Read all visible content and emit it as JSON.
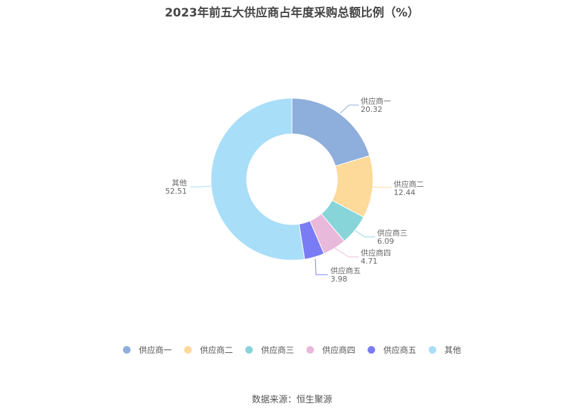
{
  "title": "2023年前五大供应商占年度采购总额比例（%）",
  "source": "数据来源：恒生聚源",
  "chart_data": {
    "type": "pie",
    "subtype": "donut",
    "title": "2023年前五大供应商占年度采购总额比例（%）",
    "categories": [
      "供应商一",
      "供应商二",
      "供应商三",
      "供应商四",
      "供应商五",
      "其他"
    ],
    "values": [
      20.32,
      12.44,
      6.09,
      4.71,
      3.98,
      52.51
    ],
    "colors": [
      "#8eaedb",
      "#fdd99a",
      "#88d5d9",
      "#e8b9da",
      "#7a7cf5",
      "#a8def8"
    ],
    "legend_position": "bottom",
    "unit": "%"
  },
  "legend": [
    {
      "label": "供应商一",
      "color": "#8eaedb"
    },
    {
      "label": "供应商二",
      "color": "#fdd99a"
    },
    {
      "label": "供应商三",
      "color": "#88d5d9"
    },
    {
      "label": "供应商四",
      "color": "#e8b9da"
    },
    {
      "label": "供应商五",
      "color": "#7a7cf5"
    },
    {
      "label": "其他",
      "color": "#a8def8"
    }
  ],
  "labels": [
    {
      "name": "供应商一",
      "value": "20.32"
    },
    {
      "name": "供应商二",
      "value": "12.44"
    },
    {
      "name": "供应商三",
      "value": "6.09"
    },
    {
      "name": "供应商四",
      "value": "4.71"
    },
    {
      "name": "供应商五",
      "value": "3.98"
    },
    {
      "name": "其他",
      "value": "52.51"
    }
  ]
}
